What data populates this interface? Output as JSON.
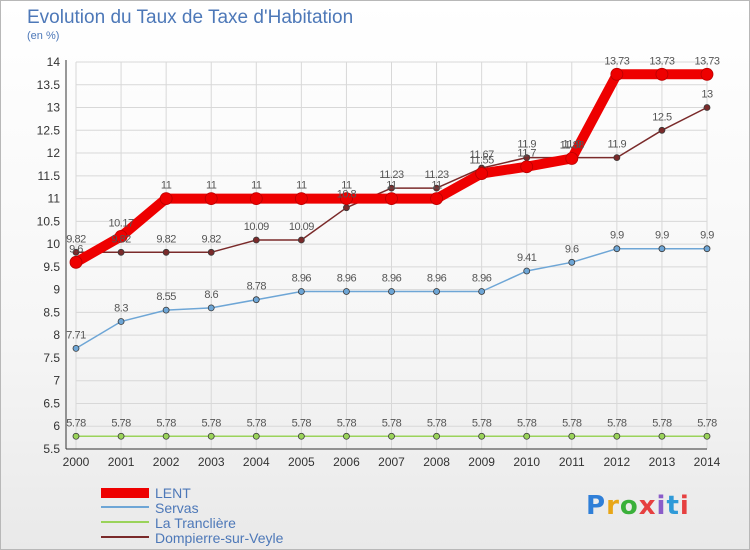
{
  "header": {
    "title": "Evolution du Taux de Taxe d'Habitation",
    "subtitle": "(en %)"
  },
  "colors": {
    "title": "#4d78b8",
    "axis": "#333333",
    "grid": "#d8d8d8"
  },
  "logo": {
    "text": "Proxiti",
    "letter_colors": [
      "#2f7fd8",
      "#e8a617",
      "#3ab03a",
      "#e64040",
      "#8a5cc9",
      "#2f9ad8",
      "#e64040"
    ]
  },
  "chart_data": {
    "type": "line",
    "title": "Evolution du Taux de Taxe d'Habitation",
    "ylabel": "(en %)",
    "xlabel": "",
    "x": [
      "2000",
      "2001",
      "2002",
      "2003",
      "2004",
      "2005",
      "2006",
      "2007",
      "2008",
      "2009",
      "2010",
      "2011",
      "2012",
      "2013",
      "2014"
    ],
    "ylim": [
      5.5,
      14
    ],
    "yticks": [
      "5.5",
      "6",
      "6.5",
      "7",
      "7.5",
      "8",
      "8.5",
      "9",
      "9.5",
      "10",
      "10.5",
      "11",
      "11.5",
      "12",
      "12.5",
      "13",
      "13.5",
      "14"
    ],
    "grid": true,
    "legend_position": "bottom-left",
    "series": [
      {
        "name": "LENT",
        "color": "#ee0000",
        "values": [
          9.6,
          10.17,
          11,
          11,
          11,
          11,
          11,
          11,
          11,
          11.55,
          11.7,
          11.88,
          13.73,
          13.73,
          13.73
        ],
        "labels": [
          "9.6",
          "10.17",
          "11",
          "11",
          "11",
          "11",
          "11",
          "11",
          "11",
          "11.55",
          "11.7",
          "11.88",
          "13.73",
          "13.73",
          "13.73"
        ]
      },
      {
        "name": "Servas",
        "color": "#6ea6d6",
        "values": [
          7.71,
          8.3,
          8.55,
          8.6,
          8.78,
          8.96,
          8.96,
          8.96,
          8.96,
          8.96,
          9.41,
          9.6,
          9.9,
          9.9,
          9.9
        ],
        "labels": [
          "7.71",
          "8.3",
          "8.55",
          "8.6",
          "8.78",
          "8.96",
          "8.96",
          "8.96",
          "8.96",
          "8.96",
          "9.41",
          "9.6",
          "9.9",
          "9.9",
          "9.9"
        ]
      },
      {
        "name": "La Tranclière",
        "color": "#9ad35a",
        "values": [
          5.78,
          5.78,
          5.78,
          5.78,
          5.78,
          5.78,
          5.78,
          5.78,
          5.78,
          5.78,
          5.78,
          5.78,
          5.78,
          5.78,
          5.78
        ],
        "labels": [
          "5.78",
          "5.78",
          "5.78",
          "5.78",
          "5.78",
          "5.78",
          "5.78",
          "5.78",
          "5.78",
          "5.78",
          "5.78",
          "5.78",
          "5.78",
          "5.78",
          "5.78"
        ]
      },
      {
        "name": "Dompierre-sur-Veyle",
        "color": "#7a2a2a",
        "values": [
          9.82,
          9.82,
          9.82,
          9.82,
          10.09,
          10.09,
          10.8,
          11.23,
          11.23,
          11.67,
          11.9,
          11.9,
          11.9,
          12.5,
          13
        ],
        "labels": [
          "9.82",
          "9.82",
          "9.82",
          "9.82",
          "10.09",
          "10.09",
          "10.8",
          "11.23",
          "11.23",
          "11.67",
          "11.9",
          "11.9",
          "11.9",
          "12.5",
          "13"
        ]
      }
    ]
  }
}
